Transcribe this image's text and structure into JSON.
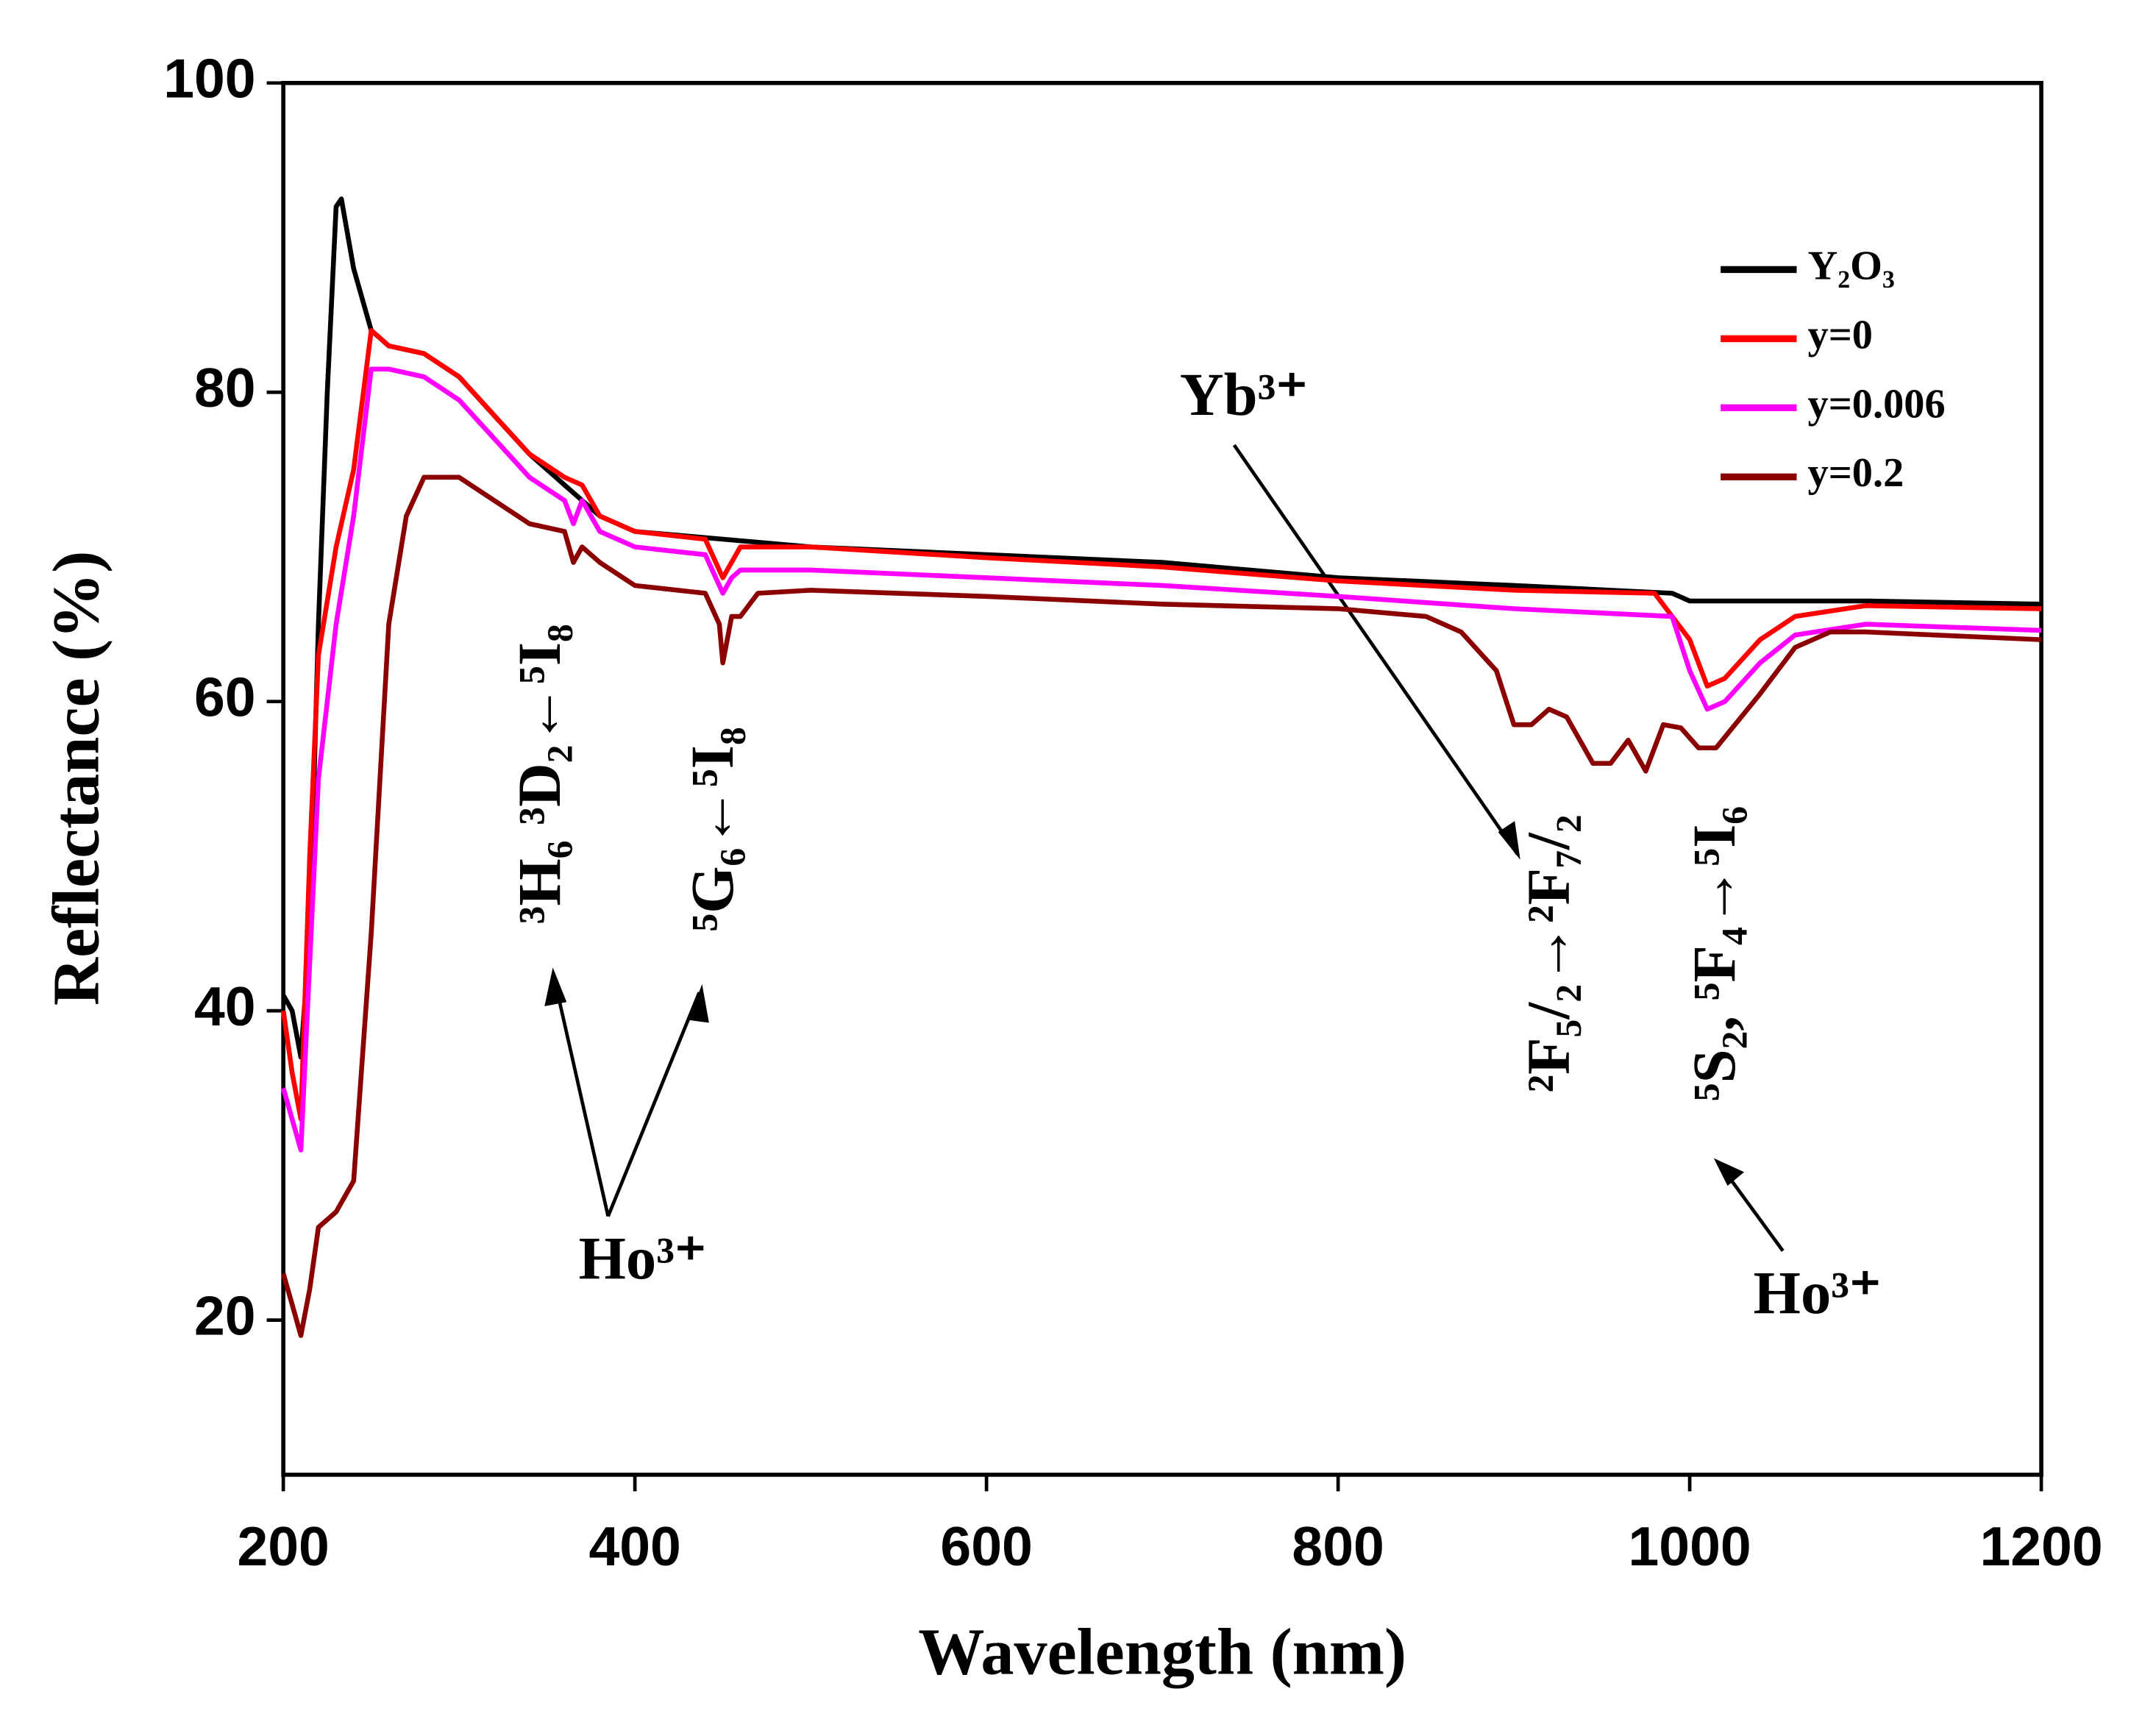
{
  "chart_data": {
    "type": "line",
    "xlabel": "Wavelength (nm)",
    "ylabel": "Reflectance (%)",
    "xlim": [
      200,
      1200
    ],
    "ylim": [
      10,
      100
    ],
    "xticks": [
      200,
      400,
      600,
      800,
      1000,
      1200
    ],
    "yticks": [
      20,
      40,
      60,
      80,
      100
    ],
    "legend": "upper right",
    "annotations": [
      "³H₆ ³D₂←⁵I₈",
      "⁵G₆←⁵I₈",
      "Ho³⁺",
      "Yb³⁺",
      "²F₅/₂→²F₇/₂",
      "⁵S₂, ⁵F₄→⁵I₆",
      "Ho³⁺"
    ],
    "series": [
      {
        "name": "Y₂O₃",
        "color": "#000000",
        "x": [
          200,
          205,
          210,
          215,
          220,
          225,
          230,
          233,
          240,
          250,
          260,
          280,
          300,
          320,
          340,
          360,
          380,
          400,
          450,
          500,
          600,
          700,
          800,
          900,
          990,
          1000,
          1100,
          1200
        ],
        "values": [
          41,
          40,
          37,
          45,
          65,
          80,
          92,
          92.5,
          88,
          84,
          83,
          82.5,
          81,
          78.5,
          76,
          74,
          72,
          71,
          70.5,
          70,
          69.5,
          69,
          68,
          67.5,
          67,
          66.5,
          66.5,
          66.3
        ]
      },
      {
        "name": "y=0",
        "color": "#ff0000",
        "x": [
          200,
          205,
          210,
          215,
          220,
          230,
          240,
          250,
          260,
          280,
          300,
          320,
          340,
          360,
          370,
          380,
          400,
          440,
          450,
          460,
          500,
          600,
          700,
          800,
          900,
          980,
          1000,
          1010,
          1020,
          1040,
          1060,
          1100,
          1200
        ],
        "values": [
          40,
          36,
          33,
          50,
          63,
          70,
          75,
          84,
          83,
          82.5,
          81,
          78.5,
          76,
          74.5,
          74,
          72,
          71,
          70.5,
          68,
          70,
          70,
          69.3,
          68.7,
          67.8,
          67.2,
          67,
          64,
          61,
          61.5,
          64,
          65.5,
          66.2,
          66
        ]
      },
      {
        "name": "y=0.006",
        "color": "#ff00ff",
        "x": [
          200,
          210,
          220,
          230,
          240,
          250,
          260,
          280,
          300,
          320,
          340,
          360,
          365,
          370,
          380,
          400,
          440,
          450,
          455,
          460,
          500,
          600,
          700,
          800,
          900,
          990,
          1000,
          1010,
          1020,
          1040,
          1060,
          1100,
          1200
        ],
        "values": [
          35,
          31,
          55,
          65,
          72,
          81.5,
          81.5,
          81,
          79.5,
          77,
          74.5,
          73,
          71.5,
          73,
          71,
          70,
          69.5,
          67,
          68,
          68.5,
          68.5,
          68,
          67.5,
          66.8,
          66,
          65.5,
          62,
          59.5,
          60,
          62.5,
          64.3,
          65,
          64.6
        ]
      },
      {
        "name": "y=0.2",
        "color": "#8b0000",
        "x": [
          200,
          205,
          210,
          215,
          220,
          230,
          240,
          250,
          260,
          270,
          280,
          300,
          320,
          340,
          360,
          365,
          370,
          380,
          400,
          440,
          448,
          450,
          455,
          460,
          470,
          500,
          600,
          700,
          800,
          850,
          870,
          890,
          900,
          910,
          920,
          930,
          945,
          955,
          965,
          975,
          985,
          995,
          1005,
          1015,
          1040,
          1060,
          1080,
          1100,
          1200
        ],
        "values": [
          23,
          21,
          19,
          22,
          26,
          27,
          29,
          45,
          65,
          72,
          74.5,
          74.5,
          73,
          71.5,
          71,
          69,
          70,
          69,
          67.5,
          67,
          65,
          62.5,
          65.5,
          65.5,
          67,
          67.2,
          66.8,
          66.3,
          66,
          65.5,
          64.5,
          62,
          58.5,
          58.5,
          59.5,
          59,
          56,
          56,
          57.5,
          55.5,
          58.5,
          58.3,
          57,
          57,
          60.5,
          63.5,
          64.5,
          64.5,
          64
        ]
      }
    ]
  }
}
